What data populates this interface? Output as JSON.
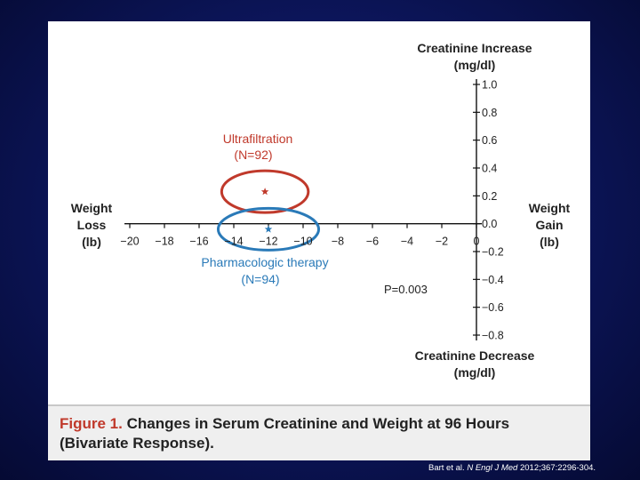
{
  "caption": {
    "label": "Figure 1.",
    "text": "Changes in Serum Creatinine and Weight at 96 Hours (Bivariate Response)."
  },
  "citation": {
    "authors": "Bart et al.",
    "journal": "N Engl J Med",
    "details": "2012;367:2296-304."
  },
  "chart_data": {
    "type": "scatter",
    "x_axis": {
      "min": -20,
      "max": 0,
      "ticks": [
        -20,
        -18,
        -16,
        -14,
        -12,
        -10,
        -8,
        -6,
        -4,
        -2,
        0
      ],
      "tick_labels": [
        "−20",
        "−18",
        "−16",
        "−14",
        "−12",
        "−10",
        "−8",
        "−6",
        "−4",
        "−2",
        "0"
      ],
      "label_left": {
        "line1": "Weight",
        "line2": "Loss",
        "line3": "(lb)"
      },
      "label_right": {
        "line1": "Weight",
        "line2": "Gain",
        "line3": "(lb)"
      }
    },
    "y_axis": {
      "min": -0.8,
      "max": 1.0,
      "ticks": [
        1.0,
        0.8,
        0.6,
        0.4,
        0.2,
        0.0,
        -0.2,
        -0.4,
        -0.6,
        -0.8
      ],
      "tick_labels": [
        "1.0",
        "0.8",
        "0.6",
        "0.4",
        "0.2",
        "0.0",
        "−0.2",
        "−0.4",
        "−0.6",
        "−0.8"
      ],
      "label_top": {
        "line1": "Creatinine Increase",
        "line2": "(mg/dl)"
      },
      "label_bottom": {
        "line1": "Creatinine Decrease",
        "line2": "(mg/dl)"
      }
    },
    "series": [
      {
        "name": "Ultrafiltration",
        "n_label": "(N=92)",
        "color": "#c0392b",
        "point": {
          "x": -12.2,
          "y": 0.23
        },
        "ellipse": {
          "x_radius": 2.5,
          "y_radius": 0.15
        }
      },
      {
        "name": "Pharmacologic therapy",
        "n_label": "(N=94)",
        "color": "#2a7ab8",
        "point": {
          "x": -12.0,
          "y": -0.04
        },
        "ellipse": {
          "x_radius": 2.9,
          "y_radius": 0.15
        }
      }
    ],
    "annotation": "P=0.003",
    "grid": false
  }
}
